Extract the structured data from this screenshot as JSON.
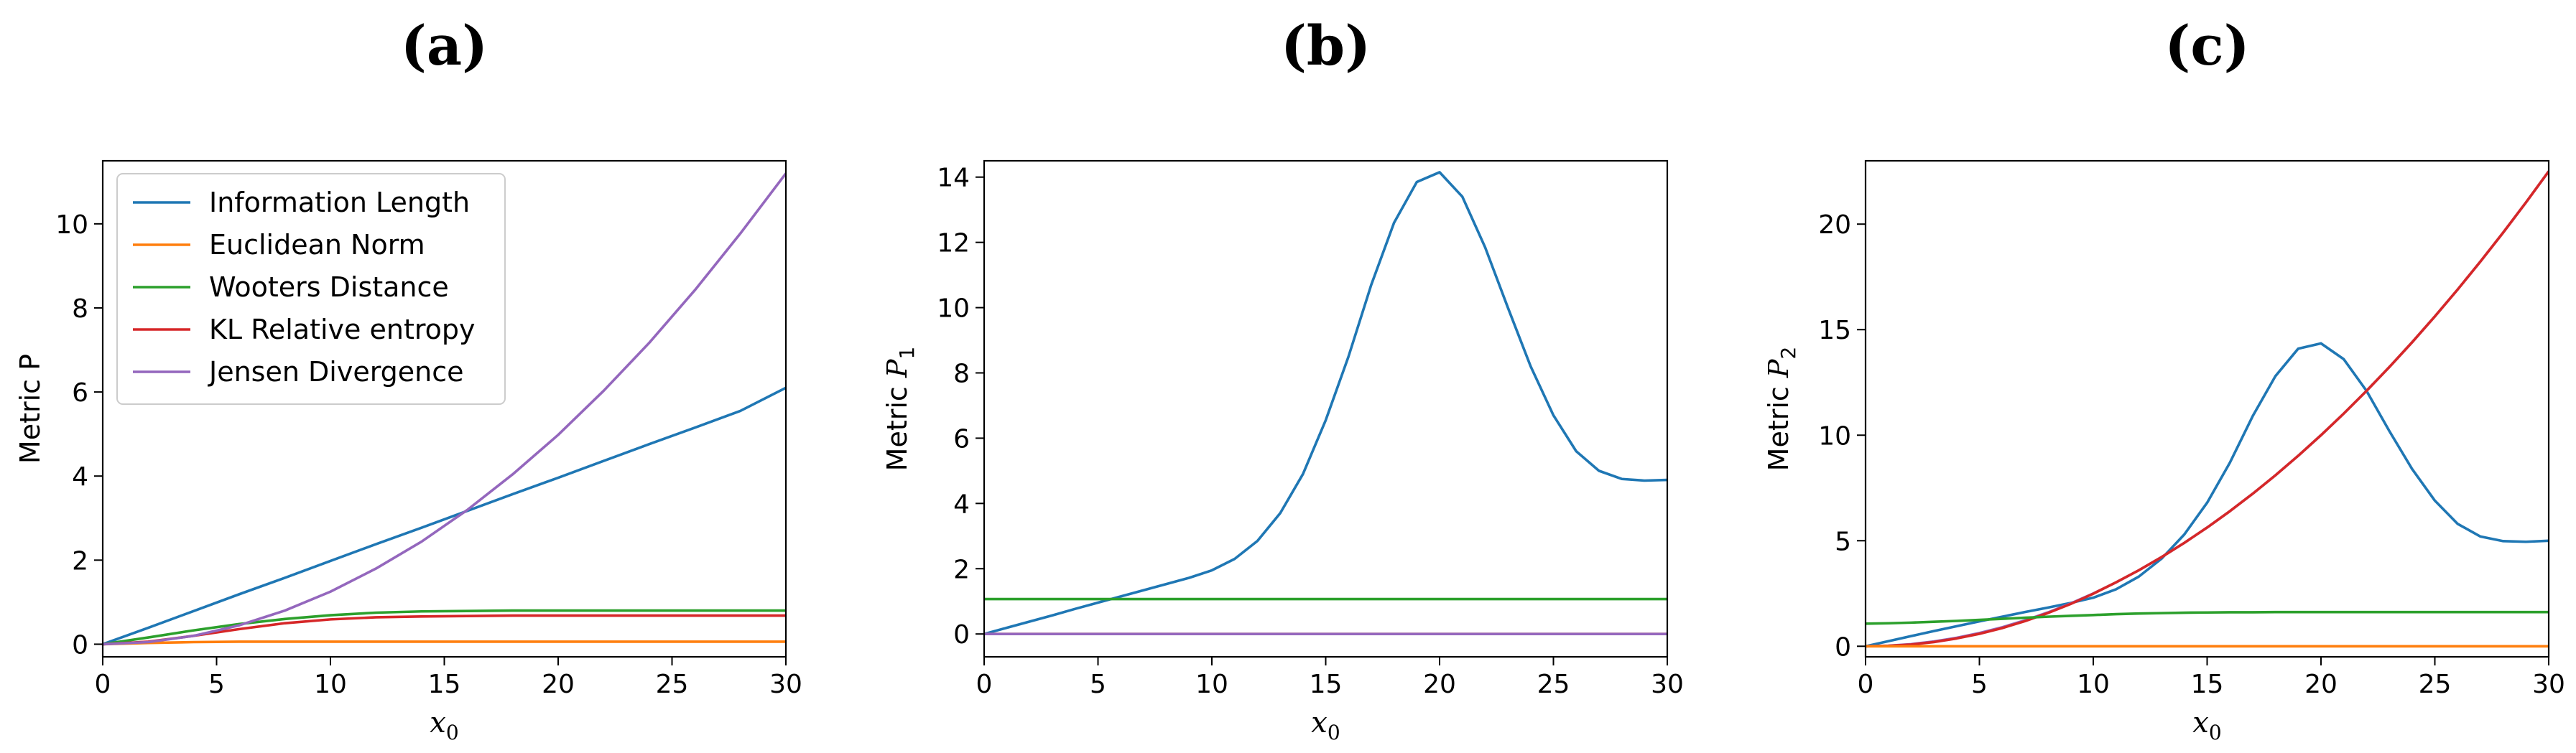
{
  "chart_data": [
    {
      "type": "line",
      "panel_label": "(a)",
      "xlabel_base": "x",
      "xlabel_sub": "0",
      "ylabel_base": "Metric P",
      "ylabel_sub": "",
      "xlim": [
        0,
        30
      ],
      "ylim": [
        -0.3,
        11.5
      ],
      "xticks": [
        0,
        5,
        10,
        15,
        20,
        25,
        30
      ],
      "yticks": [
        0,
        2,
        4,
        6,
        8,
        10
      ],
      "grid": false,
      "legend_position": "top-left",
      "x": [
        0,
        2,
        4,
        6,
        8,
        10,
        12,
        14,
        16,
        18,
        20,
        22,
        24,
        26,
        28,
        30
      ],
      "series": [
        {
          "name": "Information Length",
          "color": "#1f77b4",
          "values": [
            0,
            0.39,
            0.79,
            1.19,
            1.58,
            1.98,
            2.38,
            2.77,
            3.17,
            3.57,
            3.96,
            4.36,
            4.76,
            5.15,
            5.55,
            6.1
          ]
        },
        {
          "name": "Euclidean Norm",
          "color": "#ff7f0e",
          "values": [
            0,
            0.03,
            0.05,
            0.06,
            0.06,
            0.06,
            0.06,
            0.06,
            0.06,
            0.06,
            0.06,
            0.06,
            0.06,
            0.06,
            0.06,
            0.06
          ]
        },
        {
          "name": "Wooters Distance",
          "color": "#2ca02c",
          "values": [
            0,
            0.16,
            0.33,
            0.48,
            0.6,
            0.69,
            0.75,
            0.78,
            0.79,
            0.8,
            0.8,
            0.8,
            0.8,
            0.8,
            0.8,
            0.8
          ]
        },
        {
          "name": "KL Relative entropy",
          "color": "#d62728",
          "values": [
            0,
            0.06,
            0.2,
            0.36,
            0.5,
            0.59,
            0.64,
            0.66,
            0.67,
            0.68,
            0.68,
            0.68,
            0.68,
            0.68,
            0.68,
            0.68
          ]
        },
        {
          "name": "Jensen Divergence",
          "color": "#9467bd",
          "values": [
            0,
            0.05,
            0.2,
            0.45,
            0.8,
            1.25,
            1.8,
            2.44,
            3.19,
            4.04,
            4.98,
            6.03,
            7.17,
            8.42,
            9.77,
            11.2
          ]
        }
      ]
    },
    {
      "type": "line",
      "panel_label": "(b)",
      "xlabel_base": "x",
      "xlabel_sub": "0",
      "ylabel_base": "Metric ",
      "ylabel_sub": "1",
      "ylabel_var": "P",
      "xlim": [
        0,
        30
      ],
      "ylim": [
        -0.7,
        14.5
      ],
      "xticks": [
        0,
        5,
        10,
        15,
        20,
        25,
        30
      ],
      "yticks": [
        0,
        2,
        4,
        6,
        8,
        10,
        12,
        14
      ],
      "grid": false,
      "x": [
        0,
        1,
        2,
        3,
        4,
        5,
        6,
        7,
        8,
        9,
        10,
        11,
        12,
        13,
        14,
        15,
        16,
        17,
        18,
        19,
        20,
        21,
        22,
        23,
        24,
        25,
        26,
        27,
        28,
        29,
        30
      ],
      "series": [
        {
          "color": "#1f77b4",
          "values": [
            0,
            0.19,
            0.38,
            0.57,
            0.77,
            0.96,
            1.15,
            1.34,
            1.53,
            1.72,
            1.95,
            2.3,
            2.85,
            3.7,
            4.9,
            6.55,
            8.5,
            10.7,
            12.6,
            13.85,
            14.15,
            13.4,
            11.85,
            10.0,
            8.2,
            6.7,
            5.6,
            5.0,
            4.75,
            4.7,
            4.72
          ]
        },
        {
          "color": "#2ca02c",
          "values": [
            1.07,
            1.07,
            1.07,
            1.07,
            1.07,
            1.07,
            1.07,
            1.07,
            1.07,
            1.07,
            1.07,
            1.07,
            1.07,
            1.07,
            1.07,
            1.07,
            1.07,
            1.07,
            1.07,
            1.07,
            1.07,
            1.07,
            1.07,
            1.07,
            1.07,
            1.07,
            1.07,
            1.07,
            1.07,
            1.07,
            1.07
          ]
        },
        {
          "color": "#ff7f0e",
          "values": [
            0,
            0,
            0,
            0,
            0,
            0,
            0,
            0,
            0,
            0,
            0,
            0,
            0,
            0,
            0,
            0,
            0,
            0,
            0,
            0,
            0,
            0,
            0,
            0,
            0,
            0,
            0,
            0,
            0,
            0,
            0
          ]
        },
        {
          "color": "#9467bd",
          "values": [
            0,
            0,
            0,
            0,
            0,
            0,
            0,
            0,
            0,
            0,
            0,
            0,
            0,
            0,
            0,
            0,
            0,
            0,
            0,
            0,
            0,
            0,
            0,
            0,
            0,
            0,
            0,
            0,
            0,
            0,
            0
          ]
        }
      ]
    },
    {
      "type": "line",
      "panel_label": "(c)",
      "xlabel_base": "x",
      "xlabel_sub": "0",
      "ylabel_base": "Metric ",
      "ylabel_sub": "2",
      "ylabel_var": "P",
      "xlim": [
        0,
        30
      ],
      "ylim": [
        -0.5,
        23
      ],
      "xticks": [
        0,
        5,
        10,
        15,
        20,
        25,
        30
      ],
      "yticks": [
        0,
        5,
        10,
        15,
        20
      ],
      "grid": false,
      "x": [
        0,
        1,
        2,
        3,
        4,
        5,
        6,
        7,
        8,
        9,
        10,
        11,
        12,
        13,
        14,
        15,
        16,
        17,
        18,
        19,
        20,
        21,
        22,
        23,
        24,
        25,
        26,
        27,
        28,
        29,
        30
      ],
      "series": [
        {
          "color": "#1f77b4",
          "values": [
            0,
            0.24,
            0.48,
            0.72,
            0.95,
            1.18,
            1.4,
            1.62,
            1.83,
            2.05,
            2.3,
            2.7,
            3.3,
            4.15,
            5.3,
            6.8,
            8.7,
            10.9,
            12.8,
            14.1,
            14.35,
            13.6,
            12.1,
            10.2,
            8.4,
            6.9,
            5.8,
            5.2,
            4.98,
            4.95,
            5.0
          ]
        },
        {
          "color": "#9467bd",
          "values": [
            0,
            0.025,
            0.1,
            0.225,
            0.4,
            0.625,
            0.9,
            1.225,
            1.6,
            2.025,
            2.5,
            3.025,
            3.6,
            4.225,
            4.9,
            5.625,
            6.4,
            7.225,
            8.1,
            9.025,
            10.0,
            11.025,
            12.1,
            13.225,
            14.4,
            15.625,
            16.9,
            18.225,
            19.6,
            21.025,
            22.5
          ]
        },
        {
          "color": "#d62728",
          "values": [
            0,
            0.02,
            0.08,
            0.2,
            0.37,
            0.59,
            0.86,
            1.19,
            1.57,
            2.0,
            2.49,
            3.03,
            3.6,
            4.225,
            4.9,
            5.625,
            6.4,
            7.225,
            8.1,
            9.025,
            10.0,
            11.025,
            12.1,
            13.225,
            14.4,
            15.625,
            16.9,
            18.225,
            19.6,
            21.025,
            22.5
          ]
        },
        {
          "color": "#2ca02c",
          "values": [
            1.07,
            1.09,
            1.12,
            1.16,
            1.2,
            1.25,
            1.3,
            1.35,
            1.4,
            1.44,
            1.48,
            1.52,
            1.55,
            1.57,
            1.59,
            1.6,
            1.61,
            1.61,
            1.62,
            1.62,
            1.62,
            1.62,
            1.62,
            1.62,
            1.62,
            1.62,
            1.62,
            1.62,
            1.62,
            1.62,
            1.62
          ]
        },
        {
          "color": "#ff7f0e",
          "values": [
            0,
            0,
            0,
            0,
            0,
            0,
            0,
            0,
            0,
            0,
            0,
            0,
            0,
            0,
            0,
            0,
            0,
            0,
            0,
            0,
            0,
            0,
            0,
            0,
            0,
            0,
            0,
            0,
            0,
            0,
            0
          ]
        }
      ]
    }
  ]
}
